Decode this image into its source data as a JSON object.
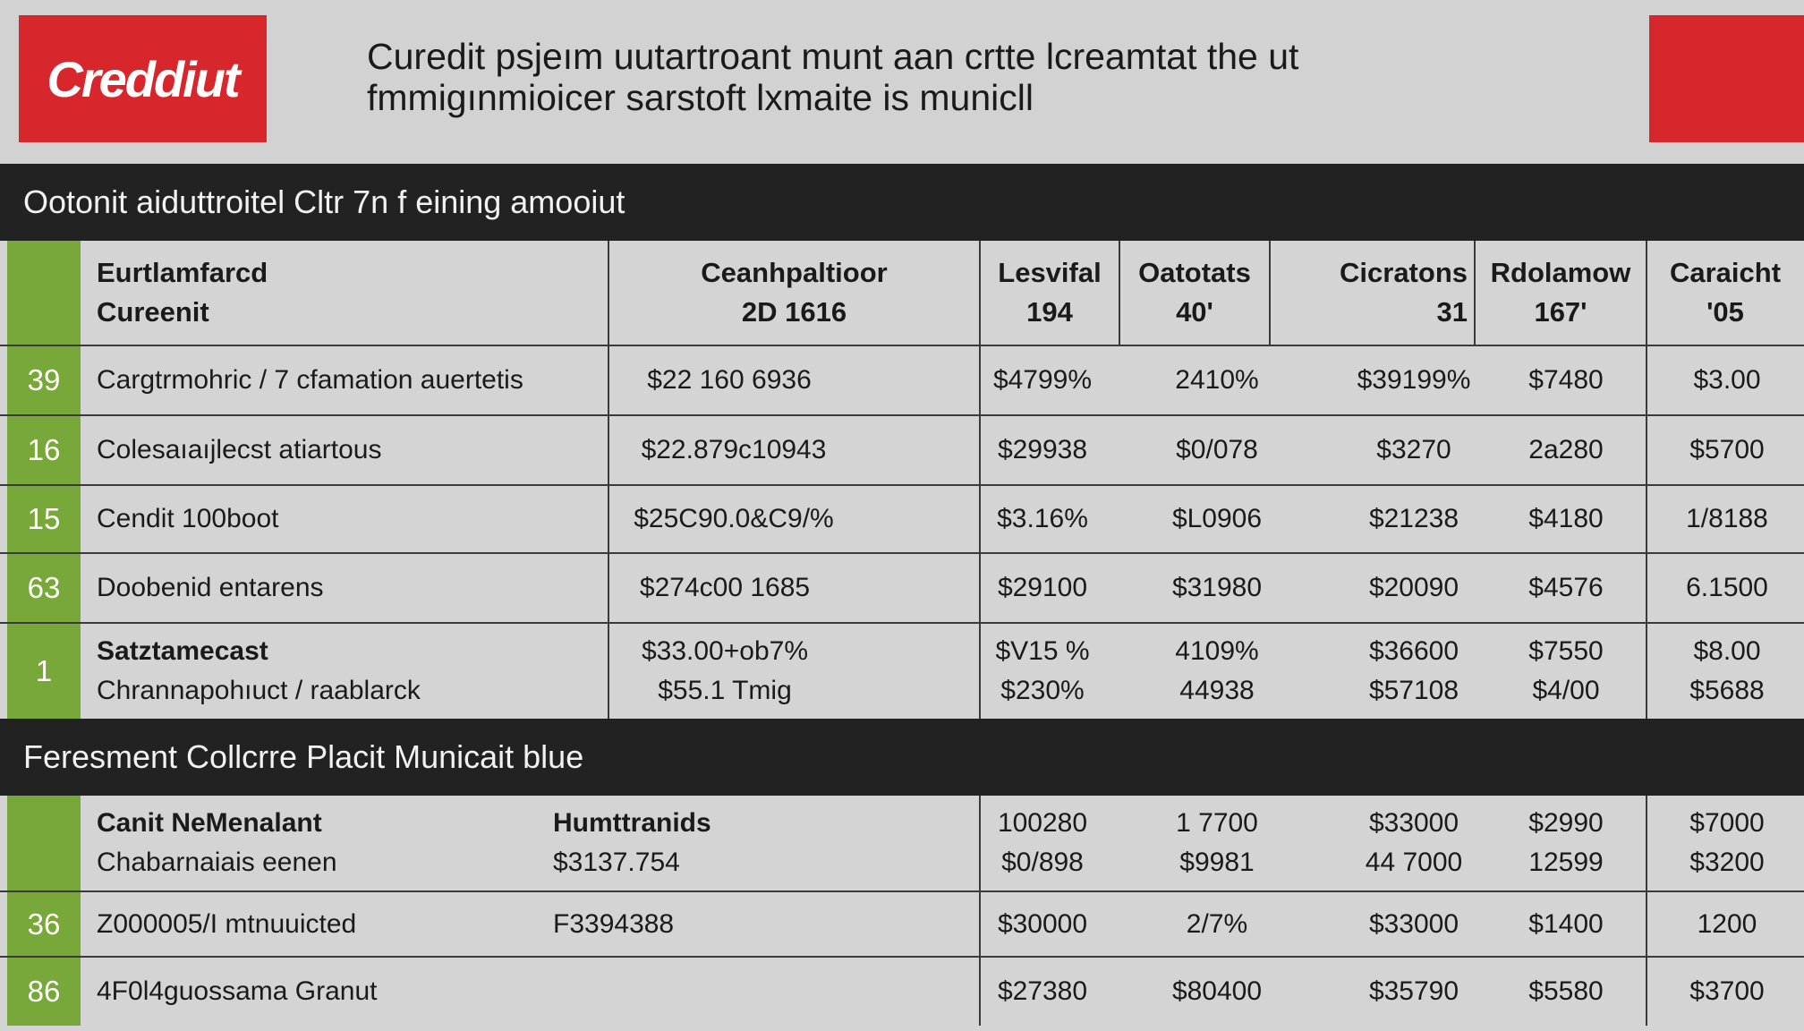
{
  "header": {
    "logo_text": "Creddiut",
    "title_line1": "Curedit psjeım uutartroant munt aan crtte lcreamtat the ut",
    "title_line2": "fmmigınmioicer sarstoft lxmaite is municll",
    "colors": {
      "brand_red": "#d7272c",
      "accent_green": "#79a83a",
      "bar_dark": "#222222"
    }
  },
  "section1": {
    "title": "Ootonit aiduttroitel Cltr 7n f eining amooiut",
    "columns": [
      {
        "line1": "Eurtlamfarcd",
        "line2": "Cureenit"
      },
      {
        "line1": "Ceanhpaltioor",
        "line2": "2D 1616"
      },
      {
        "line1": "Lesvifal",
        "line2": "194"
      },
      {
        "line1": "Oatotats",
        "line2": "40'"
      },
      {
        "line1": "Cicratons",
        "line2": "31"
      },
      {
        "line1": "Rdolamow",
        "line2": "167'"
      },
      {
        "line1": "Caraicht",
        "line2": "'05"
      }
    ],
    "rows": [
      {
        "num": "39",
        "name": "Cargtrmohric / 7 cfamation auertetis",
        "c1": "$22 160 6936",
        "c2": "$4799%",
        "c3": "2410%",
        "c4": "$39199%",
        "c5": "$7480",
        "c6": "$3.00"
      },
      {
        "num": "16",
        "name": "Colesaıaıjlecst atiartous",
        "c1": "$22.879c10943",
        "c2": "$29938",
        "c3": "$0/078",
        "c4": "$3270",
        "c5": "2a280",
        "c6": "$5700"
      },
      {
        "num": "15",
        "name": "Cendit 100boot",
        "c1": "$25C90.0&C9/%",
        "c2": "$3.16%",
        "c3": "$L0906",
        "c4": "$21238",
        "c5": "$4180",
        "c6": "1/8188"
      },
      {
        "num": "63",
        "name": "Doobenid entarens",
        "c1": "$274c00 1685",
        "c2": "$29100",
        "c3": "$31980",
        "c4": "$20090",
        "c5": "$4576",
        "c6": "6.1500"
      }
    ],
    "summary_row": {
      "num": "1",
      "name_line1": "Satztamecast",
      "name_line2": "Chrannapohıuct / raablarck",
      "c1_line1": "$33.00+ob7%",
      "c1_line2": "$55.1 Tmig",
      "c2_line1": "$V15 %",
      "c2_line2": "$230%",
      "c3_line1": "4109%",
      "c3_line2": "44938",
      "c4_line1": "$36600",
      "c4_line2": "$57108",
      "c5_line1": "$7550",
      "c5_line2": "$4/00",
      "c6_line1": "$8.00",
      "c6_line2": "$5688"
    }
  },
  "section2": {
    "title": "Feresment Collcrre Placit Municait blue",
    "header_row": {
      "name_line1": "Canit NeMenalant",
      "name_line2": "Chabarnaiais eenen",
      "col2_line1": "Humttranids",
      "col2_line2": "$3137.754",
      "c2_line1": "100280",
      "c2_line2": "$0/898",
      "c3_line1": "1 7700",
      "c3_line2": "$9981",
      "c4_line1": "$33000",
      "c4_line2": "44 7000",
      "c5_line1": "$2990",
      "c5_line2": "12599",
      "c6_line1": "$7000",
      "c6_line2": "$3200"
    },
    "rows": [
      {
        "num": "36",
        "name": "Z000005/I mtnuuicted",
        "col2": "F3394388",
        "c2": "$30000",
        "c3": "2/7%",
        "c4": "$33000",
        "c5": "$1400",
        "c6": "1200"
      },
      {
        "num": "86",
        "name": "4F0l4guossama Granut",
        "col2": "",
        "c2": "$27380",
        "c3": "$80400",
        "c4": "$35790",
        "c5": "$5580",
        "c6": "$3700"
      }
    ]
  }
}
